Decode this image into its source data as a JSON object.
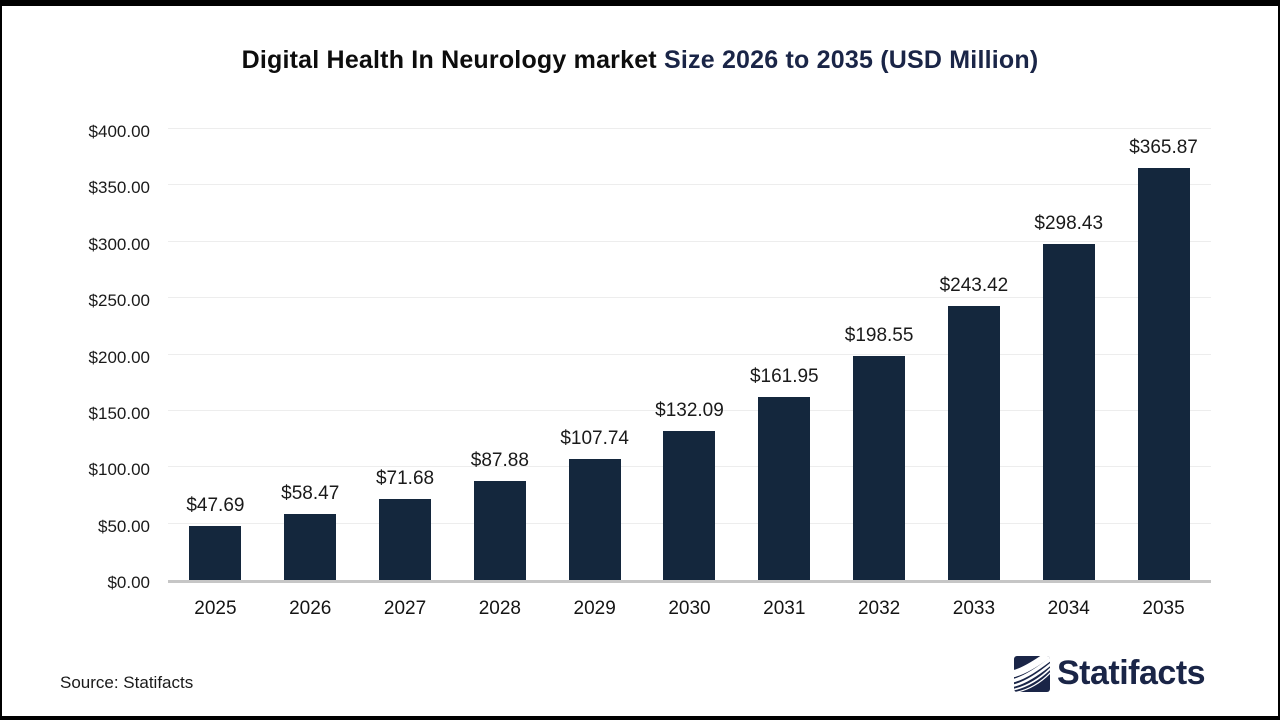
{
  "title": {
    "part1": "Digital Health In Neurology market ",
    "part2": "Size 2026 to 2035 (USD Million)"
  },
  "chart_data": {
    "type": "bar",
    "title": "Digital Health In Neurology market Size 2026 to 2035 (USD Million)",
    "categories": [
      "2025",
      "2026",
      "2027",
      "2028",
      "2029",
      "2030",
      "2031",
      "2032",
      "2033",
      "2034",
      "2035"
    ],
    "values": [
      47.69,
      58.47,
      71.68,
      87.88,
      107.74,
      132.09,
      161.95,
      198.55,
      243.42,
      298.43,
      365.87
    ],
    "value_labels": [
      "$47.69",
      "$58.47",
      "$71.68",
      "$87.88",
      "$107.74",
      "$132.09",
      "$161.95",
      "$198.55",
      "$243.42",
      "$298.43",
      "$365.87"
    ],
    "xlabel": "",
    "ylabel": "",
    "unit": "USD Million",
    "ylim": [
      0,
      400
    ],
    "ytick_step": 50,
    "ytick_labels": [
      "$0.00",
      "$50.00",
      "$100.00",
      "$150.00",
      "$200.00",
      "$250.00",
      "$300.00",
      "$350.00",
      "$400.00"
    ],
    "grid": true,
    "legend": null,
    "bar_color": "#14273D"
  },
  "colors": {
    "bar": "#14273D",
    "title_accent": "#1A2547",
    "gridline": "#EDEDED",
    "axis_line": "#C6C6C6",
    "frame_border": "#000000"
  },
  "footer": {
    "source": "Source: Statifacts",
    "logo_text": "Statifacts"
  }
}
